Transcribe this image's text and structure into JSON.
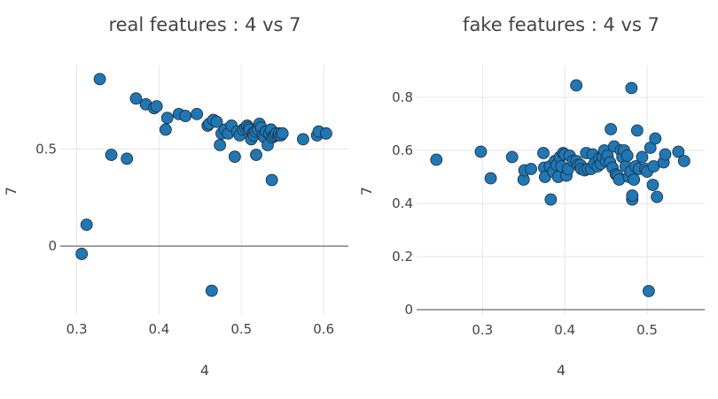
{
  "colors": {
    "marker": "#1f77b4",
    "marker_edge": "#1a2a3a",
    "text": "#444444",
    "grid": "#e6e6e6"
  },
  "chart_data": [
    {
      "type": "scatter",
      "title": "real features : 4 vs 7",
      "xlabel": "4",
      "ylabel": "7",
      "xlim": [
        0.28,
        0.63
      ],
      "ylim": [
        -0.35,
        0.93
      ],
      "xticks": [
        0.3,
        0.4,
        0.5,
        0.6
      ],
      "xtick_labels": [
        "0.3",
        "0.4",
        "0.5",
        "0.6"
      ],
      "yticks": [
        0,
        0.5
      ],
      "ytick_labels": [
        "0",
        "0.5"
      ],
      "grid": true,
      "zeroline_y": true,
      "x": [
        0.328,
        0.306,
        0.312,
        0.342,
        0.361,
        0.372,
        0.384,
        0.394,
        0.397,
        0.408,
        0.41,
        0.424,
        0.432,
        0.446,
        0.459,
        0.461,
        0.466,
        0.47,
        0.474,
        0.476,
        0.48,
        0.484,
        0.488,
        0.492,
        0.495,
        0.498,
        0.502,
        0.505,
        0.507,
        0.509,
        0.51,
        0.512,
        0.514,
        0.515,
        0.517,
        0.518,
        0.52,
        0.522,
        0.524,
        0.526,
        0.528,
        0.53,
        0.532,
        0.534,
        0.536,
        0.538,
        0.54,
        0.542,
        0.545,
        0.546,
        0.548,
        0.55,
        0.575,
        0.592,
        0.594,
        0.603,
        0.464,
        0.537
      ],
      "y": [
        0.86,
        -0.04,
        0.11,
        0.47,
        0.45,
        0.76,
        0.73,
        0.71,
        0.72,
        0.6,
        0.66,
        0.68,
        0.67,
        0.68,
        0.62,
        0.63,
        0.65,
        0.64,
        0.52,
        0.58,
        0.6,
        0.58,
        0.62,
        0.46,
        0.59,
        0.57,
        0.6,
        0.61,
        0.62,
        0.61,
        0.6,
        0.55,
        0.58,
        0.57,
        0.59,
        0.47,
        0.6,
        0.63,
        0.61,
        0.57,
        0.56,
        0.59,
        0.52,
        0.58,
        0.6,
        0.56,
        0.57,
        0.58,
        0.57,
        0.58,
        0.57,
        0.58,
        0.55,
        0.57,
        0.59,
        0.58,
        -0.23,
        0.34
      ]
    },
    {
      "type": "scatter",
      "title": "fake features : 4 vs 7",
      "xlabel": "4",
      "ylabel": "7",
      "xlim": [
        0.22,
        0.57
      ],
      "ylim": [
        -0.02,
        0.92
      ],
      "xticks": [
        0.3,
        0.4,
        0.5
      ],
      "xtick_labels": [
        "0.3",
        "0.4",
        "0.5"
      ],
      "yticks": [
        0,
        0.2,
        0.4,
        0.6,
        0.8
      ],
      "ytick_labels": [
        "0",
        "0.2",
        "0.4",
        "0.6",
        "0.8"
      ],
      "grid": true,
      "zeroline_y": true,
      "x": [
        0.244,
        0.298,
        0.31,
        0.336,
        0.35,
        0.351,
        0.359,
        0.374,
        0.375,
        0.376,
        0.382,
        0.383,
        0.386,
        0.388,
        0.39,
        0.392,
        0.394,
        0.396,
        0.398,
        0.4,
        0.402,
        0.404,
        0.406,
        0.41,
        0.414,
        0.416,
        0.419,
        0.42,
        0.424,
        0.426,
        0.428,
        0.432,
        0.434,
        0.436,
        0.44,
        0.442,
        0.444,
        0.446,
        0.448,
        0.45,
        0.452,
        0.455,
        0.456,
        0.458,
        0.46,
        0.462,
        0.464,
        0.466,
        0.468,
        0.47,
        0.472,
        0.474,
        0.476,
        0.478,
        0.48,
        0.482,
        0.484,
        0.486,
        0.488,
        0.49,
        0.494,
        0.498,
        0.5,
        0.504,
        0.508,
        0.51,
        0.512,
        0.52,
        0.522,
        0.538,
        0.545,
        0.481,
        0.414,
        0.482,
        0.502,
        0.507
      ],
      "y": [
        0.565,
        0.595,
        0.495,
        0.575,
        0.49,
        0.525,
        0.53,
        0.59,
        0.535,
        0.5,
        0.54,
        0.415,
        0.52,
        0.56,
        0.545,
        0.5,
        0.575,
        0.54,
        0.59,
        0.585,
        0.505,
        0.53,
        0.58,
        0.56,
        0.56,
        0.545,
        0.545,
        0.53,
        0.525,
        0.59,
        0.53,
        0.53,
        0.585,
        0.55,
        0.54,
        0.57,
        0.55,
        0.575,
        0.6,
        0.56,
        0.58,
        0.555,
        0.68,
        0.535,
        0.615,
        0.51,
        0.505,
        0.49,
        0.6,
        0.575,
        0.6,
        0.54,
        0.58,
        0.5,
        0.52,
        0.415,
        0.49,
        0.54,
        0.675,
        0.53,
        0.575,
        0.53,
        0.52,
        0.61,
        0.54,
        0.645,
        0.425,
        0.555,
        0.585,
        0.595,
        0.56,
        0.835,
        0.845,
        0.43,
        0.07,
        0.47
      ]
    }
  ]
}
